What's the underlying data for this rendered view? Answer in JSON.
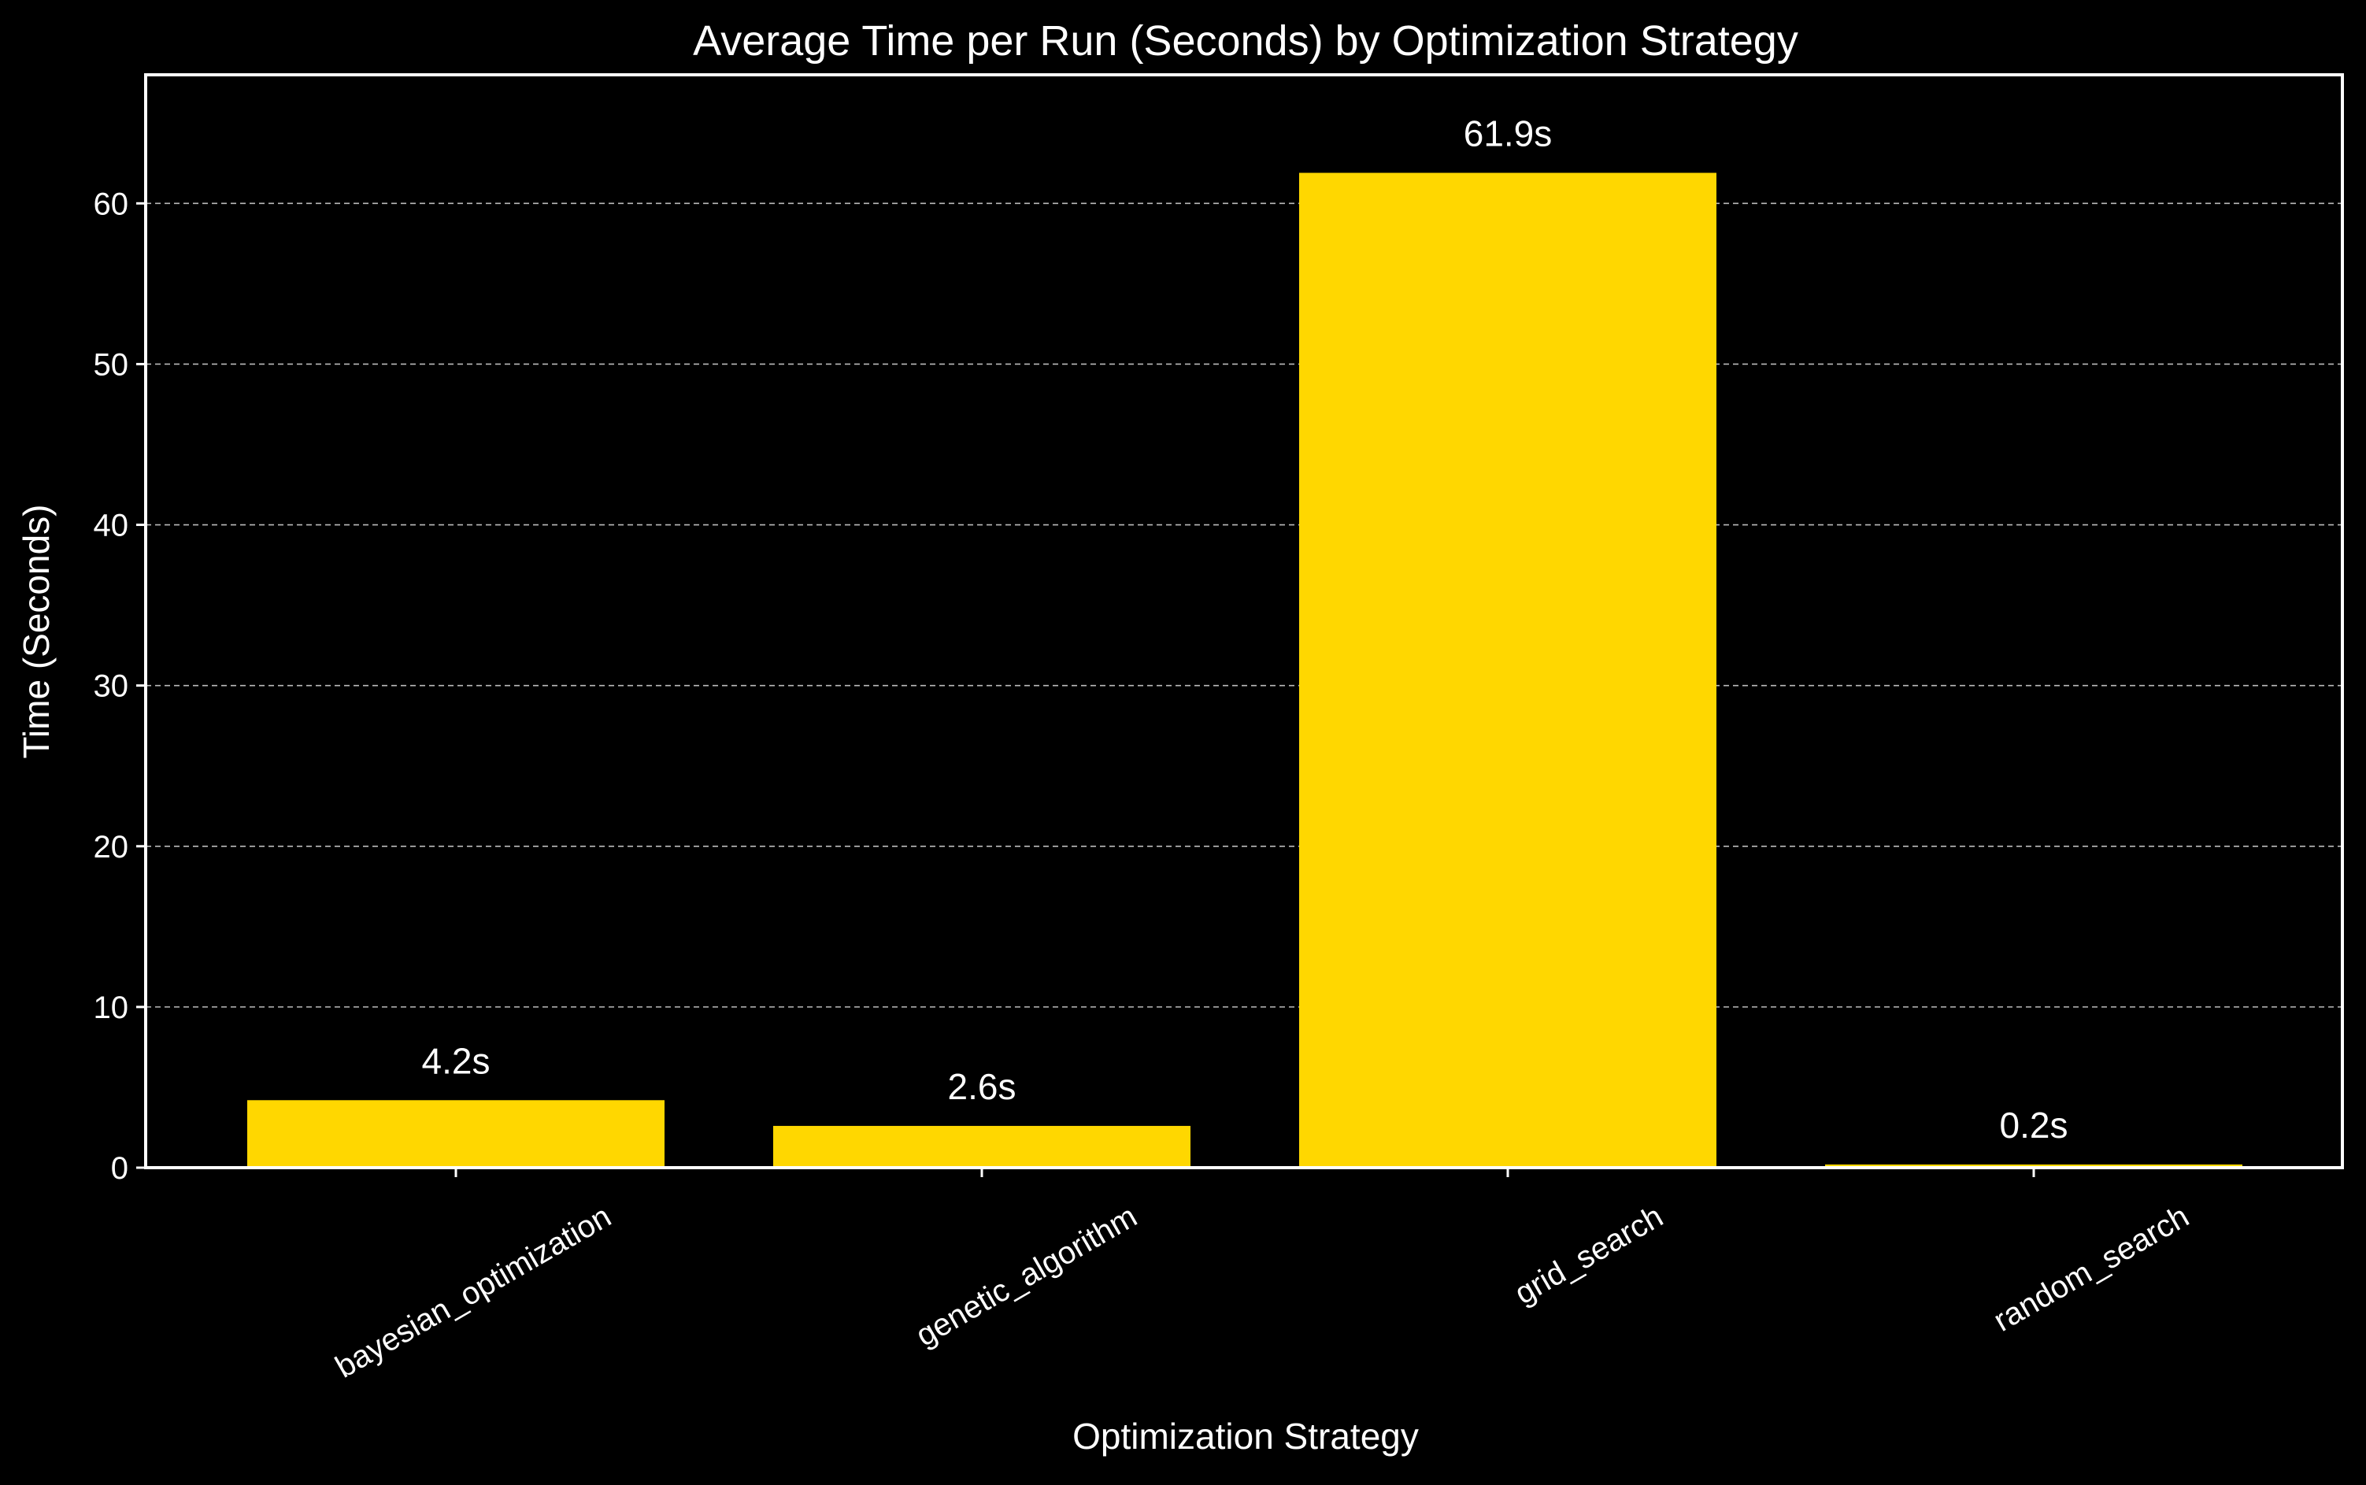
{
  "chart_data": {
    "type": "bar",
    "title": "Average Time per Run (Seconds) by Optimization Strategy",
    "xlabel": "Optimization Strategy",
    "ylabel": "Time (Seconds)",
    "categories": [
      "bayesian_optimization",
      "genetic_algorithm",
      "grid_search",
      "random_search"
    ],
    "values": [
      4.2,
      2.6,
      61.9,
      0.2
    ],
    "data_labels": [
      "4.2s",
      "2.6s",
      "61.9s",
      "0.2s"
    ],
    "ylim": [
      0,
      68
    ],
    "yticks": [
      0,
      10,
      20,
      30,
      40,
      50,
      60
    ],
    "grid": "y-dashed",
    "colors": {
      "background": "#000000",
      "bar": "#FFD700",
      "text": "#ffffff",
      "grid": "#bbbbbb"
    }
  }
}
